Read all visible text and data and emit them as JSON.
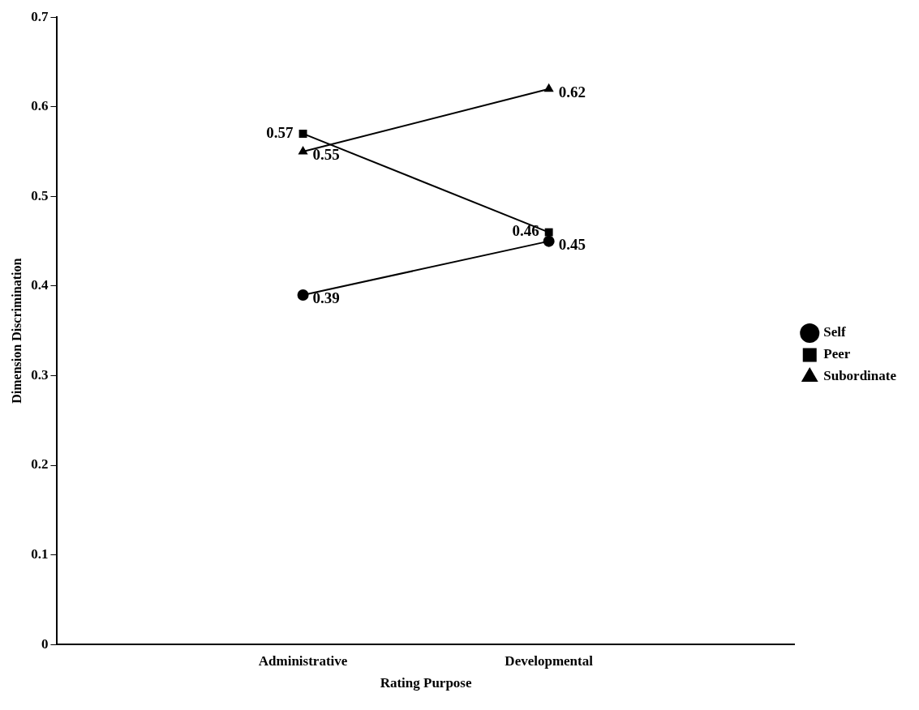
{
  "chart_data": {
    "type": "line",
    "xlabel": "Rating Purpose",
    "ylabel": "Dimension Discrimination",
    "categories": [
      "Administrative",
      "Developmental"
    ],
    "series": [
      {
        "name": "Self",
        "color": "#000000",
        "values": [
          0.39,
          0.45
        ],
        "marker": "circle"
      },
      {
        "name": "Peer",
        "color": "#000000",
        "values": [
          0.57,
          0.46
        ],
        "marker": "square"
      },
      {
        "name": "Subordinate",
        "color": "#000000",
        "values": [
          0.55,
          0.62
        ],
        "marker": "triangle"
      }
    ],
    "ylim": [
      0,
      0.7
    ],
    "yticks": [
      0,
      0.1,
      0.2,
      0.3,
      0.4,
      0.5,
      0.6,
      0.7
    ],
    "grid": false,
    "legend": "right",
    "data_labels": true,
    "line_style": "solid"
  }
}
